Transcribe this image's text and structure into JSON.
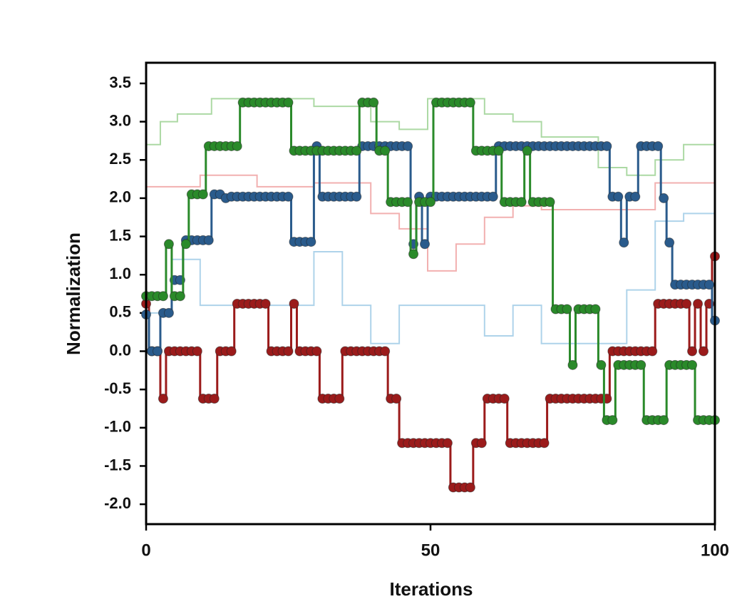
{
  "chart_data": {
    "type": "line",
    "drawstyle": "steps-mid",
    "x_label": "Iterations",
    "y_label": "Normalization",
    "xlim": [
      0,
      100
    ],
    "xticks": [
      0,
      50,
      100
    ],
    "ylim": [
      -2.26,
      3.77
    ],
    "yticks": [
      {
        "value": -2,
        "label": "-2.0"
      },
      {
        "value": -1.5,
        "label": "-1.5"
      },
      {
        "value": -1,
        "label": "-1.0"
      },
      {
        "value": -0.5,
        "label": "-0.5"
      },
      {
        "value": 0,
        "label": "0.0"
      },
      {
        "value": 0.5,
        "label": "0.5"
      },
      {
        "value": 1,
        "label": "1.0"
      },
      {
        "value": 1.5,
        "label": "1.5"
      },
      {
        "value": 2,
        "label": "2.0"
      },
      {
        "value": 2.5,
        "label": "2.5"
      },
      {
        "value": 3,
        "label": "3.0"
      },
      {
        "value": 3.5,
        "label": "3.5"
      }
    ],
    "x": [
      0,
      1,
      2,
      3,
      4,
      5,
      6,
      7,
      8,
      9,
      10,
      11,
      12,
      13,
      14,
      15,
      16,
      17,
      18,
      19,
      20,
      21,
      22,
      23,
      24,
      25,
      26,
      27,
      28,
      29,
      30,
      31,
      32,
      33,
      34,
      35,
      36,
      37,
      38,
      39,
      40,
      41,
      42,
      43,
      44,
      45,
      46,
      47,
      48,
      49,
      50,
      51,
      52,
      53,
      54,
      55,
      56,
      57,
      58,
      59,
      60,
      61,
      62,
      63,
      64,
      65,
      66,
      67,
      68,
      69,
      70,
      71,
      72,
      73,
      74,
      75,
      76,
      77,
      78,
      79,
      80,
      81,
      82,
      83,
      84,
      85,
      86,
      87,
      88,
      89,
      90,
      91,
      92,
      93,
      94,
      95,
      96,
      97,
      98,
      99,
      100
    ],
    "series": [
      {
        "color": "#f2b0b0",
        "faint": true,
        "values": [
          2.15,
          2.15,
          2.15,
          2.15,
          2.15,
          2.15,
          2.15,
          2.15,
          2.15,
          2.15,
          2.3,
          2.3,
          2.3,
          2.3,
          2.3,
          2.3,
          2.3,
          2.3,
          2.3,
          2.3,
          2.15,
          2.15,
          2.15,
          2.15,
          2.15,
          2.15,
          2.15,
          2.15,
          2.15,
          2.15,
          2.2,
          2.2,
          2.2,
          2.2,
          2.2,
          2.2,
          2.2,
          2.2,
          2.2,
          2.2,
          1.8,
          1.8,
          1.8,
          1.8,
          1.8,
          1.6,
          1.6,
          1.6,
          1.6,
          1.6,
          1.05,
          1.05,
          1.05,
          1.05,
          1.05,
          1.4,
          1.4,
          1.4,
          1.4,
          1.4,
          1.75,
          1.75,
          1.75,
          1.75,
          1.75,
          1.9,
          1.9,
          1.9,
          1.9,
          1.9,
          1.85,
          1.85,
          1.85,
          1.85,
          1.85,
          1.85,
          1.85,
          1.85,
          1.85,
          1.85,
          1.85,
          1.85,
          1.85,
          1.85,
          1.85,
          1.85,
          1.85,
          1.85,
          1.85,
          1.85,
          2.2,
          2.2,
          2.2,
          2.2,
          2.2,
          2.2,
          2.2,
          2.2,
          2.2,
          2.2,
          2.2
        ]
      },
      {
        "color": "#aed3ea",
        "faint": true,
        "values": [
          0.5,
          0.5,
          0.5,
          0.5,
          0.5,
          1.2,
          1.2,
          1.2,
          1.2,
          1.2,
          0.6,
          0.6,
          0.6,
          0.6,
          0.6,
          0.6,
          0.6,
          0.6,
          0.6,
          0.6,
          0.6,
          0.6,
          0.6,
          0.6,
          0.6,
          0.6,
          0.6,
          0.6,
          0.6,
          0.6,
          1.3,
          1.3,
          1.3,
          1.3,
          1.3,
          0.6,
          0.6,
          0.6,
          0.6,
          0.6,
          0.1,
          0.1,
          0.1,
          0.1,
          0.1,
          0.6,
          0.6,
          0.6,
          0.6,
          0.6,
          0.6,
          0.6,
          0.6,
          0.6,
          0.6,
          0.6,
          0.6,
          0.6,
          0.6,
          0.6,
          0.2,
          0.2,
          0.2,
          0.2,
          0.2,
          0.6,
          0.6,
          0.6,
          0.6,
          0.6,
          0.1,
          0.1,
          0.1,
          0.1,
          0.1,
          0.1,
          0.1,
          0.1,
          0.1,
          0.1,
          0.1,
          0.1,
          0.1,
          0.1,
          0.1,
          0.8,
          0.8,
          0.8,
          0.8,
          0.8,
          1.7,
          1.7,
          1.7,
          1.7,
          1.7,
          1.8,
          1.8,
          1.8,
          1.8,
          1.8,
          1.8
        ]
      },
      {
        "color": "#acd9a4",
        "faint": true,
        "values": [
          2.7,
          2.7,
          2.7,
          3.0,
          3.0,
          3.0,
          3.1,
          3.1,
          3.1,
          3.1,
          3.1,
          3.1,
          3.3,
          3.3,
          3.3,
          3.3,
          3.3,
          3.3,
          3.3,
          3.3,
          3.3,
          3.3,
          3.3,
          3.3,
          3.3,
          3.3,
          3.3,
          3.3,
          3.3,
          3.3,
          3.2,
          3.2,
          3.2,
          3.2,
          3.2,
          3.2,
          3.2,
          3.2,
          3.2,
          3.2,
          3.0,
          3.0,
          3.0,
          3.0,
          3.0,
          2.9,
          2.9,
          2.9,
          2.9,
          2.9,
          3.3,
          3.3,
          3.3,
          3.3,
          3.3,
          3.3,
          3.3,
          3.3,
          3.3,
          3.3,
          3.1,
          3.1,
          3.1,
          3.1,
          3.1,
          3.0,
          3.0,
          3.0,
          3.0,
          3.0,
          2.8,
          2.8,
          2.8,
          2.8,
          2.8,
          2.8,
          2.8,
          2.8,
          2.8,
          2.8,
          2.4,
          2.4,
          2.4,
          2.4,
          2.4,
          2.3,
          2.3,
          2.3,
          2.3,
          2.3,
          2.5,
          2.5,
          2.5,
          2.5,
          2.5,
          2.7,
          2.7,
          2.7,
          2.7,
          2.7,
          2.7
        ]
      },
      {
        "color": "#9b1b1b",
        "values": [
          0.62,
          0,
          0,
          -0.62,
          0,
          0,
          0,
          0,
          0,
          0,
          -0.62,
          -0.62,
          -0.62,
          0,
          0,
          0,
          0.62,
          0.62,
          0.62,
          0.62,
          0.62,
          0.62,
          0,
          0,
          0,
          0,
          0.62,
          0,
          0,
          0,
          0,
          -0.62,
          -0.62,
          -0.62,
          -0.62,
          0,
          0,
          0,
          0,
          0,
          0,
          0,
          0,
          -0.62,
          -0.62,
          -1.2,
          -1.2,
          -1.2,
          -1.2,
          -1.2,
          -1.2,
          -1.2,
          -1.2,
          -1.2,
          -1.78,
          -1.78,
          -1.78,
          -1.78,
          -1.2,
          -1.2,
          -0.62,
          -0.62,
          -0.62,
          -0.62,
          -1.2,
          -1.2,
          -1.2,
          -1.2,
          -1.2,
          -1.2,
          -1.2,
          -0.62,
          -0.62,
          -0.62,
          -0.62,
          -0.62,
          -0.62,
          -0.62,
          -0.62,
          -0.62,
          -0.62,
          -0.62,
          0,
          0,
          0,
          0,
          0,
          0,
          0,
          0,
          0.62,
          0.62,
          0.62,
          0.62,
          0.62,
          0.62,
          0,
          0.62,
          0,
          0.62,
          1.24
        ]
      },
      {
        "color": "#2a5b8c",
        "values": [
          0.48,
          0,
          0,
          0.5,
          0.5,
          0.93,
          0.93,
          1.45,
          1.45,
          1.45,
          1.45,
          1.45,
          2.05,
          2.05,
          2.0,
          2.02,
          2.02,
          2.02,
          2.02,
          2.02,
          2.02,
          2.02,
          2.02,
          2.02,
          2.02,
          2.02,
          1.43,
          1.43,
          1.43,
          1.43,
          2.68,
          2.02,
          2.02,
          2.02,
          2.02,
          2.02,
          2.02,
          2.02,
          2.68,
          2.68,
          2.68,
          2.68,
          2.68,
          2.68,
          2.68,
          2.68,
          2.68,
          1.4,
          2.02,
          1.4,
          2.02,
          2.02,
          2.02,
          2.02,
          2.02,
          2.02,
          2.02,
          2.02,
          2.02,
          2.02,
          2.02,
          2.02,
          2.68,
          2.68,
          2.68,
          2.68,
          2.68,
          2.68,
          2.68,
          2.68,
          2.68,
          2.68,
          2.68,
          2.68,
          2.68,
          2.68,
          2.68,
          2.68,
          2.68,
          2.68,
          2.68,
          2.68,
          2.02,
          2.02,
          1.42,
          2.02,
          2.02,
          2.68,
          2.68,
          2.68,
          2.68,
          2.0,
          1.42,
          0.87,
          0.87,
          0.87,
          0.87,
          0.87,
          0.87,
          0.87,
          0.4
        ]
      },
      {
        "color": "#2a8a2a",
        "values": [
          0.72,
          0.72,
          0.72,
          0.72,
          1.4,
          0.72,
          0.72,
          1.4,
          2.05,
          2.05,
          2.05,
          2.68,
          2.68,
          2.68,
          2.68,
          2.68,
          2.68,
          3.25,
          3.25,
          3.25,
          3.25,
          3.25,
          3.25,
          3.25,
          3.25,
          3.25,
          2.62,
          2.62,
          2.62,
          2.62,
          2.62,
          2.62,
          2.62,
          2.62,
          2.62,
          2.62,
          2.62,
          2.62,
          3.25,
          3.25,
          3.25,
          2.62,
          2.62,
          1.95,
          1.95,
          1.95,
          1.95,
          1.27,
          1.95,
          1.95,
          1.95,
          3.25,
          3.25,
          3.25,
          3.25,
          3.25,
          3.25,
          3.25,
          2.62,
          2.62,
          2.62,
          2.62,
          2.62,
          1.95,
          1.95,
          1.95,
          1.95,
          2.62,
          1.95,
          1.95,
          1.95,
          1.95,
          0.55,
          0.55,
          0.55,
          -0.18,
          0.55,
          0.55,
          0.55,
          0.55,
          -0.18,
          -0.9,
          -0.9,
          -0.18,
          -0.18,
          -0.18,
          -0.18,
          -0.18,
          -0.9,
          -0.9,
          -0.9,
          -0.9,
          -0.18,
          -0.18,
          -0.18,
          -0.18,
          -0.18,
          -0.9,
          -0.9,
          -0.9,
          -0.9
        ]
      }
    ]
  }
}
